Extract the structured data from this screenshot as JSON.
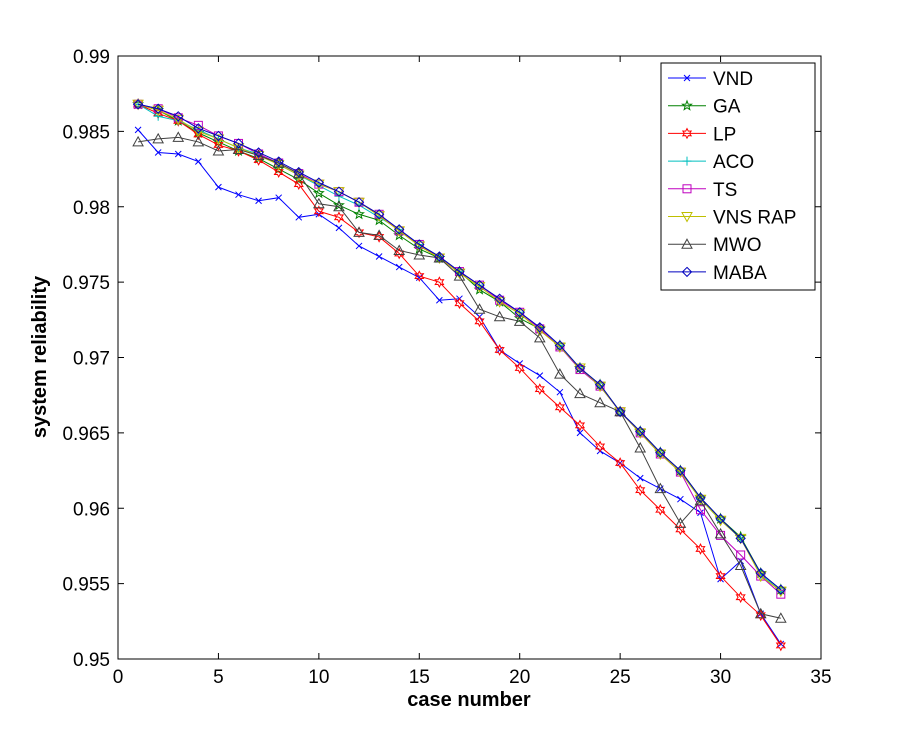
{
  "chart_data": {
    "type": "line",
    "title": "",
    "xlabel": "case number",
    "ylabel": "system reliability",
    "xlim": [
      0,
      35
    ],
    "ylim": [
      0.95,
      0.99
    ],
    "xticks": [
      0,
      5,
      10,
      15,
      20,
      25,
      30,
      35
    ],
    "xtick_labels": [
      "0",
      "5",
      "10",
      "15",
      "20",
      "25",
      "30",
      "35"
    ],
    "yticks": [
      0.95,
      0.955,
      0.96,
      0.965,
      0.97,
      0.975,
      0.98,
      0.985,
      0.99
    ],
    "ytick_labels": [
      "0.95",
      "0.955",
      "0.96",
      "0.965",
      "0.97",
      "0.975",
      "0.98",
      "0.985",
      "0.99"
    ],
    "grid": false,
    "legend_position": "top-right",
    "x": [
      1,
      2,
      3,
      4,
      5,
      6,
      7,
      8,
      9,
      10,
      11,
      12,
      13,
      14,
      15,
      16,
      17,
      18,
      19,
      20,
      21,
      22,
      23,
      24,
      25,
      26,
      27,
      28,
      29,
      30,
      31,
      32,
      33
    ],
    "series": [
      {
        "name": "VND",
        "color": "#0000ff",
        "marker": "x",
        "values": [
          0.9851,
          0.9836,
          0.9835,
          0.983,
          0.9813,
          0.9808,
          0.9804,
          0.9806,
          0.9793,
          0.9795,
          0.9786,
          0.9774,
          0.9767,
          0.976,
          0.9753,
          0.9738,
          0.9739,
          0.9727,
          0.9705,
          0.9696,
          0.9688,
          0.9677,
          0.965,
          0.9638,
          0.963,
          0.962,
          0.9613,
          0.9606,
          0.9597,
          0.9553,
          0.9565,
          0.953,
          0.951
        ]
      },
      {
        "name": "GA",
        "color": "#008000",
        "marker": "star",
        "values": [
          0.9868,
          0.9864,
          0.9857,
          0.9849,
          0.9843,
          0.9837,
          0.9832,
          0.9825,
          0.9818,
          0.9809,
          0.9801,
          0.9795,
          0.9791,
          0.9781,
          0.9772,
          0.9766,
          0.9757,
          0.9745,
          0.9737,
          0.9726,
          0.9719,
          0.9708,
          0.9693,
          0.9682,
          0.9664,
          0.9651,
          0.9637,
          0.9625,
          0.9607,
          0.9593,
          0.9581,
          0.9557,
          0.9546
        ]
      },
      {
        "name": "LP",
        "color": "#ff0000",
        "marker": "hexagram",
        "values": [
          0.9868,
          0.9862,
          0.9857,
          0.9848,
          0.9841,
          0.9837,
          0.9831,
          0.9823,
          0.9815,
          0.9797,
          0.9793,
          0.9783,
          0.978,
          0.9769,
          0.9754,
          0.975,
          0.9736,
          0.9724,
          0.9705,
          0.9693,
          0.9679,
          0.9667,
          0.9655,
          0.9641,
          0.963,
          0.9612,
          0.9599,
          0.9586,
          0.9573,
          0.9555,
          0.9541,
          0.9529,
          0.9509
        ]
      },
      {
        "name": "ACO",
        "color": "#00bfbf",
        "marker": "plus",
        "values": [
          0.9868,
          0.986,
          0.9857,
          0.9851,
          0.9845,
          0.9839,
          0.9835,
          0.9828,
          0.9821,
          0.9814,
          0.9807,
          0.9801,
          0.9793,
          0.9785,
          0.9775,
          0.9767,
          0.9757,
          0.9748,
          0.9738,
          0.973,
          0.9719,
          0.9708,
          0.9693,
          0.9681,
          0.9664,
          0.965,
          0.9636,
          0.9624,
          0.9606,
          0.9592,
          0.958,
          0.9556,
          0.9545
        ]
      },
      {
        "name": "TS",
        "color": "#bf00bf",
        "marker": "square",
        "values": [
          0.9868,
          0.9865,
          0.9859,
          0.9854,
          0.9847,
          0.9842,
          0.9835,
          0.9829,
          0.9822,
          0.9815,
          0.981,
          0.9803,
          0.9795,
          0.9784,
          0.9775,
          0.9766,
          0.9757,
          0.9748,
          0.9738,
          0.973,
          0.9719,
          0.9707,
          0.9692,
          0.9681,
          0.9664,
          0.965,
          0.9636,
          0.9624,
          0.9599,
          0.9582,
          0.9569,
          0.9555,
          0.9543
        ]
      },
      {
        "name": "VNS RAP",
        "color": "#bfbf00",
        "marker": "triangle-down",
        "values": [
          0.9868,
          0.9864,
          0.9858,
          0.985,
          0.9845,
          0.9839,
          0.9834,
          0.9828,
          0.9821,
          0.9815,
          0.981,
          0.9803,
          0.9794,
          0.9784,
          0.9774,
          0.9766,
          0.9756,
          0.9747,
          0.9737,
          0.9729,
          0.9718,
          0.9707,
          0.9693,
          0.9681,
          0.9664,
          0.965,
          0.9636,
          0.9624,
          0.9606,
          0.9592,
          0.958,
          0.9555,
          0.9545
        ]
      },
      {
        "name": "MWO",
        "color": "#404040",
        "marker": "triangle-up",
        "values": [
          0.9843,
          0.9845,
          0.9846,
          0.9843,
          0.9837,
          0.9838,
          0.9834,
          0.9829,
          0.9822,
          0.9802,
          0.98,
          0.9783,
          0.9781,
          0.9771,
          0.9768,
          0.9766,
          0.9754,
          0.9732,
          0.9727,
          0.9724,
          0.9713,
          0.9689,
          0.9676,
          0.967,
          0.9664,
          0.964,
          0.9613,
          0.959,
          0.9605,
          0.9583,
          0.9562,
          0.953,
          0.9527
        ]
      },
      {
        "name": "MABA",
        "color": "#0000bf",
        "marker": "diamond",
        "values": [
          0.9868,
          0.9865,
          0.986,
          0.9852,
          0.9847,
          0.9842,
          0.9836,
          0.983,
          0.9823,
          0.9816,
          0.981,
          0.9803,
          0.9795,
          0.9785,
          0.9775,
          0.9767,
          0.9757,
          0.9748,
          0.9739,
          0.973,
          0.972,
          0.9708,
          0.9693,
          0.9682,
          0.9664,
          0.9651,
          0.9637,
          0.9625,
          0.9607,
          0.9593,
          0.958,
          0.9557,
          0.9546
        ]
      }
    ]
  }
}
